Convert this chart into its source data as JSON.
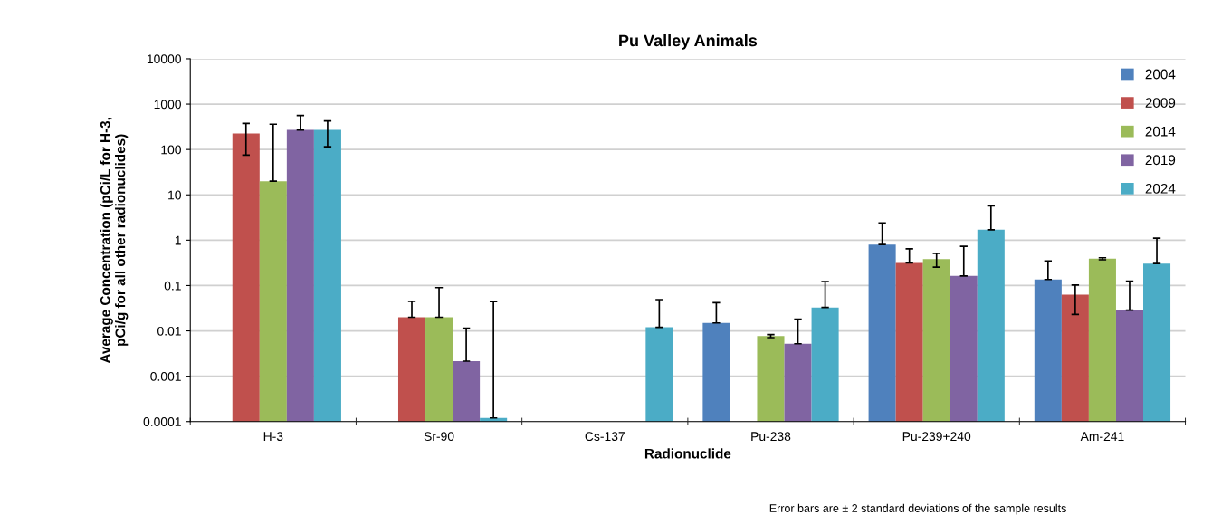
{
  "chart_data": {
    "type": "bar",
    "title": "Pu Valley Animals",
    "xlabel": "Radionuclide",
    "ylabel": "Average Concentration (pCi/L for H-3,\npCi/g for all other radionuclides)",
    "categories": [
      "H-3",
      "Sr-90",
      "Cs-137",
      "Pu-238",
      "Pu-239+240",
      "Am-241"
    ],
    "series": [
      {
        "name": "2004",
        "color": "#4f81bd",
        "values": [
          null,
          null,
          null,
          0.015,
          0.8,
          0.136
        ],
        "errors": [
          null,
          null,
          null,
          0.027,
          1.6,
          0.21
        ]
      },
      {
        "name": "2009",
        "color": "#c0504d",
        "values": [
          225,
          0.02,
          null,
          null,
          0.315,
          0.063
        ],
        "errors": [
          150,
          0.025,
          null,
          null,
          0.33,
          0.04
        ]
      },
      {
        "name": "2014",
        "color": "#9bbb59",
        "values": [
          20,
          0.02,
          null,
          0.0077,
          0.384,
          0.39
        ],
        "errors": [
          340,
          0.07,
          null,
          0.0006,
          0.13,
          0.02
        ]
      },
      {
        "name": "2019",
        "color": "#8064a2",
        "values": [
          270,
          0.00215,
          null,
          0.0052,
          0.163,
          0.0286
        ],
        "errors": [
          290,
          0.0093,
          null,
          0.013,
          0.57,
          0.097
        ]
      },
      {
        "name": "2024",
        "color": "#4bacc6",
        "values": [
          270,
          0.00012,
          0.012,
          0.0328,
          1.7,
          0.305
        ],
        "errors": [
          155,
          0.044,
          0.037,
          0.089,
          4,
          0.8
        ]
      }
    ],
    "log": true,
    "ylim": [
      0.0001,
      10000
    ],
    "yticks": [
      0.0001,
      0.001,
      0.01,
      0.1,
      1,
      10,
      100,
      1000,
      10000
    ],
    "grid": "y",
    "legend": "top right",
    "annotations": [
      "Error bars are ± 2 standard deviations of the sample results"
    ]
  }
}
